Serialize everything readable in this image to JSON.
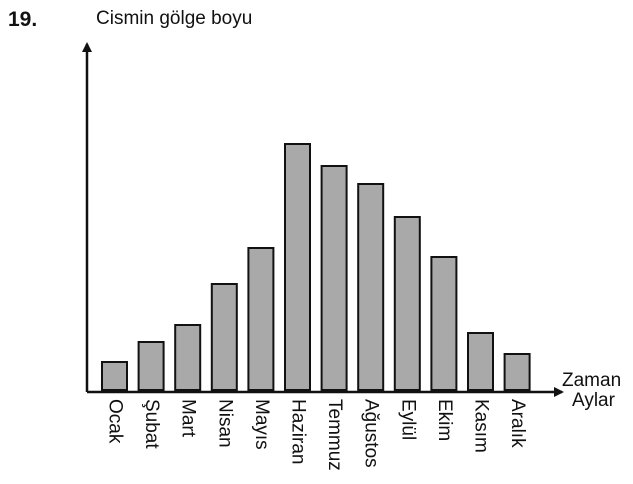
{
  "question_number": "19.",
  "chart_data": {
    "type": "bar",
    "ylabel": "Cismin gölge boyu",
    "xlabel_line1": "Zaman",
    "xlabel_line2": "Aylar",
    "categories": [
      "Ocak",
      "Şubat",
      "Mart",
      "Nisan",
      "Mayıs",
      "Haziran",
      "Temmuz",
      "Ağustos",
      "Eylül",
      "Ekim",
      "Kasım",
      "Aralık"
    ],
    "values": [
      28,
      48,
      65,
      106,
      142,
      246,
      224,
      206,
      173,
      133,
      57,
      36
    ],
    "bar_color": "#a9a9a9",
    "edge_color": "#111111",
    "grid": false,
    "yticks": false
  }
}
